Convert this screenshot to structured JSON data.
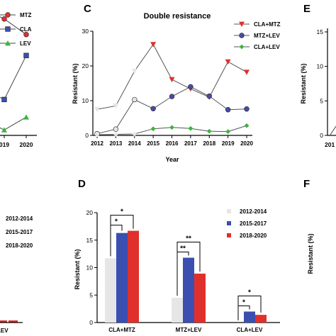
{
  "panels": {
    "A": {
      "type": "line",
      "x": [
        "2019",
        "2020"
      ],
      "xtick_labels": [
        "019",
        "2020"
      ],
      "series": [
        {
          "name": "MTZ",
          "color": "#e0302c",
          "marker": "circle",
          "values": [
            17.2,
            14.9
          ]
        },
        {
          "name": "CLA",
          "color": "#3a4fb0",
          "marker": "square",
          "values": [
            5.3,
            11.8
          ]
        },
        {
          "name": "LEV",
          "color": "#3cb43c",
          "marker": "triangle-up",
          "values": [
            0.8,
            2.7
          ]
        }
      ],
      "ylim": [
        0,
        20
      ]
    },
    "B": {
      "legend": [
        "2012-2014",
        "2015-2017",
        "2018-2020"
      ],
      "xtick_label": "LEV"
    },
    "C": {
      "letter": "C",
      "chart_data": {
        "type": "line",
        "title": "Double resistance",
        "xlabel": "Year",
        "ylabel": "Resistant (%)",
        "x": [
          "2012",
          "2013",
          "2014",
          "2015",
          "2016",
          "2017",
          "2018",
          "2019",
          "2020"
        ],
        "ylim": [
          0,
          30
        ],
        "yticks": [
          "0",
          "10",
          "20",
          "30"
        ],
        "series": [
          {
            "name": "CLA+MTZ",
            "color": "#e0302c",
            "marker": "triangle-down",
            "values": [
              7.5,
              8.5,
              18.5,
              26.2,
              16.1,
              13.4,
              11.0,
              21.2,
              18.2
            ]
          },
          {
            "name": "MTZ+LEV",
            "color": "#4a4aa8",
            "marker": "circle",
            "values": [
              0.5,
              1.8,
              10.3,
              7.7,
              11.2,
              14.0,
              11.3,
              7.4,
              7.6
            ]
          },
          {
            "name": "CLA+LEV",
            "color": "#3cb43c",
            "marker": "diamond",
            "values": [
              0.2,
              0.3,
              0.4,
              1.9,
              2.3,
              2.0,
              1.2,
              1.1,
              2.8
            ]
          }
        ],
        "legend_position": "top-right"
      }
    },
    "D": {
      "letter": "D",
      "chart_data": {
        "type": "bar",
        "xlabel": "",
        "ylabel": "Resistant (%)",
        "categories": [
          "CLA+MTZ",
          "MTZ+LEV",
          "CLA+LEV"
        ],
        "ylim": [
          0,
          20
        ],
        "yticks": [
          "0",
          "5",
          "10",
          "15",
          "20"
        ],
        "series": [
          {
            "name": "2012-2014",
            "color": "#e6e6e6",
            "values": [
              11.7,
              4.5,
              0
            ]
          },
          {
            "name": "2015-2017",
            "color": "#3a4fb0",
            "values": [
              16.3,
              11.8,
              2.0
            ]
          },
          {
            "name": "2018-2020",
            "color": "#e0302c",
            "values": [
              16.7,
              8.9,
              1.4
            ]
          }
        ],
        "significance": [
          {
            "category": "CLA+MTZ",
            "pairs": [
              [
                "2012-2014",
                "2015-2017",
                "*"
              ],
              [
                "2012-2014",
                "2018-2020",
                "*"
              ]
            ]
          },
          {
            "category": "MTZ+LEV",
            "pairs": [
              [
                "2012-2014",
                "2015-2017",
                "**"
              ],
              [
                "2012-2014",
                "2018-2020",
                "**"
              ]
            ]
          },
          {
            "category": "CLA+LEV",
            "pairs": [
              [
                "2012-2014",
                "2015-2017",
                "*"
              ],
              [
                "2012-2014",
                "2018-2020",
                "*"
              ]
            ]
          }
        ],
        "legend_position": "top-right"
      }
    },
    "E": {
      "letter": "E",
      "ylabel": "Resistant (%)",
      "yticks": [
        "0",
        "5",
        "10",
        "15"
      ],
      "xtick_fragment": "201"
    },
    "F": {
      "letter": "F",
      "ylabel": "Resistant (%)"
    }
  }
}
